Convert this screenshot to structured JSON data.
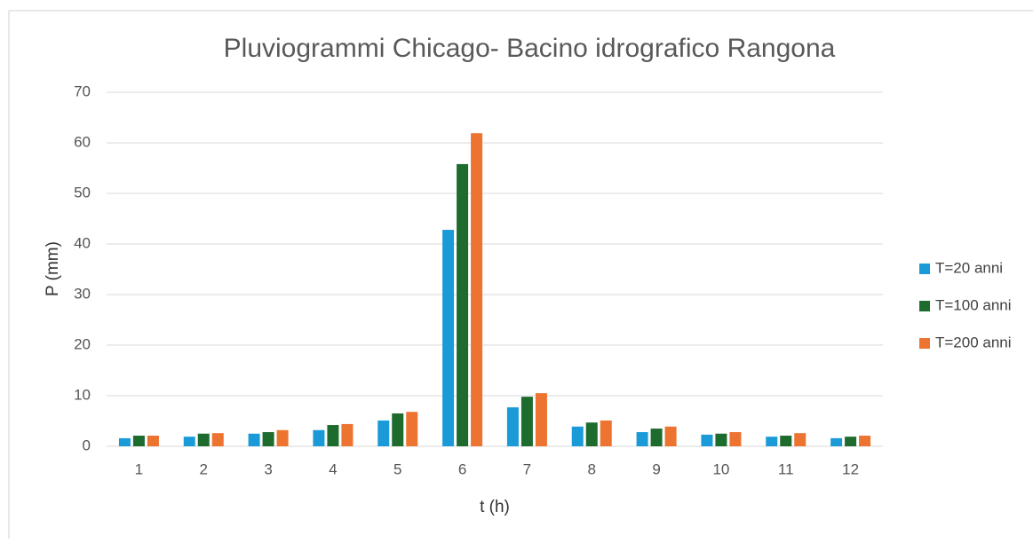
{
  "chart_data": {
    "type": "bar",
    "title": "Pluviogrammi Chicago- Bacino idrografico Rangona",
    "xlabel": "t (h)",
    "ylabel": "P (mm)",
    "categories": [
      "1",
      "2",
      "3",
      "4",
      "5",
      "6",
      "7",
      "8",
      "9",
      "10",
      "11",
      "12"
    ],
    "series": [
      {
        "name": "T=20 anni",
        "color": "#1a9bd7",
        "values": [
          1.6,
          1.9,
          2.5,
          3.2,
          5.1,
          42.8,
          7.7,
          3.9,
          2.8,
          2.3,
          1.9,
          1.6
        ]
      },
      {
        "name": "T=100 anni",
        "color": "#1e6b2e",
        "values": [
          2.1,
          2.5,
          2.8,
          4.2,
          6.5,
          55.8,
          9.8,
          4.7,
          3.5,
          2.5,
          2.1,
          1.9
        ]
      },
      {
        "name": "T=200 anni",
        "color": "#ed7330",
        "values": [
          2.1,
          2.6,
          3.2,
          4.4,
          6.8,
          61.9,
          10.5,
          5.1,
          3.9,
          2.8,
          2.6,
          2.1
        ]
      }
    ],
    "ylim": [
      0,
      70
    ],
    "yticks": [
      0,
      10,
      20,
      30,
      40,
      50,
      60,
      70
    ],
    "grid": true,
    "legend": "right"
  }
}
